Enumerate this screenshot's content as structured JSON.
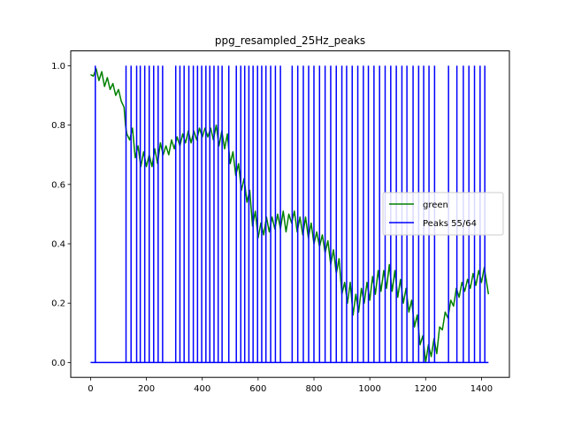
{
  "chart_data": {
    "type": "line",
    "title": "ppg_resampled_25Hz_peaks",
    "xlabel": "",
    "ylabel": "",
    "xlim": [
      -71,
      1500
    ],
    "ylim": [
      -0.05,
      1.05
    ],
    "xticks": [
      0,
      200,
      400,
      600,
      800,
      1000,
      1200,
      1400
    ],
    "yticks": [
      0.0,
      0.2,
      0.4,
      0.6,
      0.8,
      1.0
    ],
    "xtick_labels": [
      "0",
      "200",
      "400",
      "600",
      "800",
      "1000",
      "1200",
      "1400"
    ],
    "ytick_labels": [
      "0.0",
      "0.2",
      "0.4",
      "0.6",
      "0.8",
      "1.0"
    ],
    "legend_position": "center-right",
    "grid": false,
    "series": [
      {
        "name": "green",
        "color": "#008000",
        "x": [
          0,
          10,
          20,
          30,
          40,
          50,
          60,
          70,
          80,
          90,
          100,
          110,
          120,
          125,
          130,
          140,
          150,
          160,
          170,
          180,
          190,
          200,
          210,
          220,
          230,
          240,
          250,
          260,
          270,
          280,
          290,
          300,
          310,
          320,
          330,
          340,
          350,
          360,
          370,
          380,
          390,
          400,
          410,
          420,
          430,
          440,
          450,
          460,
          470,
          480,
          490,
          500,
          510,
          520,
          530,
          540,
          550,
          560,
          570,
          580,
          590,
          600,
          610,
          620,
          630,
          640,
          650,
          660,
          670,
          680,
          690,
          700,
          710,
          720,
          730,
          740,
          750,
          760,
          770,
          780,
          790,
          800,
          810,
          820,
          830,
          840,
          850,
          860,
          870,
          880,
          890,
          900,
          910,
          920,
          930,
          940,
          950,
          960,
          970,
          980,
          990,
          1000,
          1010,
          1020,
          1030,
          1040,
          1050,
          1060,
          1070,
          1080,
          1090,
          1100,
          1110,
          1120,
          1130,
          1140,
          1150,
          1160,
          1170,
          1180,
          1190,
          1200,
          1210,
          1220,
          1230,
          1240,
          1250,
          1260,
          1270,
          1280,
          1290,
          1300,
          1310,
          1320,
          1330,
          1340,
          1350,
          1360,
          1370,
          1380,
          1390,
          1400,
          1410,
          1420,
          1425
        ],
        "y": [
          0.97,
          0.965,
          0.99,
          0.95,
          0.98,
          0.93,
          0.96,
          0.92,
          0.94,
          0.9,
          0.92,
          0.88,
          0.86,
          0.8,
          0.77,
          0.75,
          0.79,
          0.69,
          0.73,
          0.66,
          0.71,
          0.66,
          0.7,
          0.66,
          0.72,
          0.67,
          0.74,
          0.7,
          0.73,
          0.7,
          0.75,
          0.72,
          0.76,
          0.73,
          0.77,
          0.74,
          0.78,
          0.74,
          0.78,
          0.75,
          0.79,
          0.76,
          0.79,
          0.76,
          0.79,
          0.75,
          0.8,
          0.73,
          0.78,
          0.72,
          0.77,
          0.67,
          0.71,
          0.63,
          0.67,
          0.58,
          0.62,
          0.54,
          0.58,
          0.46,
          0.51,
          0.42,
          0.47,
          0.43,
          0.49,
          0.44,
          0.49,
          0.45,
          0.5,
          0.45,
          0.51,
          0.44,
          0.5,
          0.47,
          0.51,
          0.44,
          0.49,
          0.43,
          0.49,
          0.42,
          0.47,
          0.4,
          0.44,
          0.39,
          0.43,
          0.37,
          0.41,
          0.33,
          0.38,
          0.3,
          0.35,
          0.23,
          0.27,
          0.2,
          0.27,
          0.16,
          0.23,
          0.17,
          0.25,
          0.2,
          0.27,
          0.21,
          0.29,
          0.23,
          0.31,
          0.24,
          0.31,
          0.25,
          0.33,
          0.24,
          0.31,
          0.22,
          0.28,
          0.2,
          0.25,
          0.17,
          0.21,
          0.12,
          0.16,
          0.06,
          0.09,
          0.0,
          0.06,
          0.02,
          0.08,
          0.03,
          0.12,
          0.11,
          0.17,
          0.15,
          0.21,
          0.19,
          0.25,
          0.22,
          0.27,
          0.24,
          0.28,
          0.25,
          0.3,
          0.26,
          0.31,
          0.27,
          0.32,
          0.26,
          0.23
        ]
      },
      {
        "name": "Peaks 55/64",
        "color": "#0000ff",
        "type": "spikes",
        "baseline": 0.0,
        "peak_value": 1.0,
        "x_start": 0,
        "x_end": 1425,
        "peaks_x": [
          17,
          127,
          145,
          165,
          178,
          194,
          210,
          226,
          242,
          258,
          305,
          320,
          335,
          352,
          368,
          383,
          398,
          413,
          427,
          442,
          457,
          471,
          495,
          522,
          538,
          552,
          567,
          582,
          598,
          613,
          628,
          645,
          662,
          680,
          722,
          742,
          762,
          781,
          800,
          820,
          840,
          860,
          880,
          900,
          917,
          937,
          957,
          977,
          995,
          1015,
          1035,
          1055,
          1075,
          1095,
          1115,
          1133,
          1155,
          1175,
          1193,
          1212,
          1232,
          1282,
          1312,
          1335,
          1355,
          1375,
          1395,
          1412
        ]
      }
    ]
  }
}
